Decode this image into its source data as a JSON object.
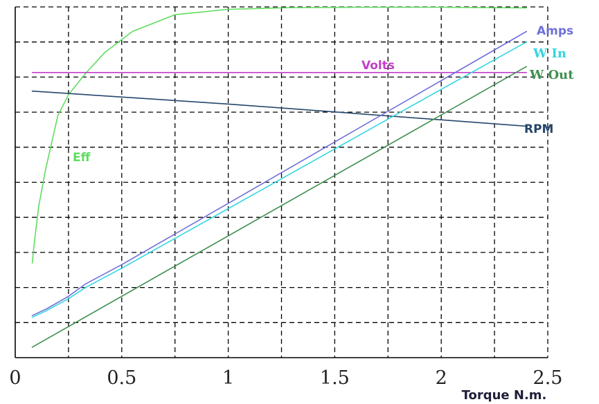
{
  "chart_data": {
    "type": "line",
    "xlabel": "Torque N.m.",
    "xlim": [
      0,
      2.5
    ],
    "x_ticks": [
      "0",
      "0.5",
      "1",
      "1.5",
      "2",
      "2.5"
    ],
    "ylim": [
      0,
      10
    ],
    "grid": true,
    "series": [
      {
        "name": "Eff",
        "color": "#5fdc5f",
        "x": [
          0.08,
          0.09,
          0.11,
          0.14,
          0.17,
          0.2,
          0.25,
          0.33,
          0.42,
          0.55,
          0.75,
          1.0,
          1.3,
          1.6,
          2.0,
          2.4
        ],
        "y": [
          2.7,
          3.3,
          4.3,
          5.3,
          6.1,
          6.9,
          7.5,
          8.1,
          8.7,
          9.3,
          9.78,
          9.93,
          9.98,
          9.99,
          9.99,
          9.97
        ]
      },
      {
        "name": "Volts",
        "color": "#c03fc9",
        "x": [
          0.08,
          2.4
        ],
        "y": [
          8.13,
          8.13
        ]
      },
      {
        "name": "RPM",
        "color": "#26466b",
        "x": [
          0.08,
          1.0,
          2.4
        ],
        "y": [
          7.6,
          7.23,
          6.6
        ]
      },
      {
        "name": "Amps",
        "color": "#6f6fd9",
        "x": [
          0.08,
          0.15,
          0.25,
          0.33,
          0.5,
          1.0,
          1.5,
          2.0,
          2.4
        ],
        "y": [
          1.2,
          1.4,
          1.75,
          2.1,
          2.65,
          4.4,
          6.15,
          7.9,
          9.3
        ]
      },
      {
        "name": "W In",
        "color": "#33d6e0",
        "x": [
          0.08,
          0.15,
          0.25,
          0.33,
          0.5,
          1.0,
          1.5,
          2.0,
          2.4
        ],
        "y": [
          1.15,
          1.35,
          1.68,
          2.0,
          2.55,
          4.25,
          5.95,
          7.65,
          9.0
        ]
      },
      {
        "name": "W Out",
        "color": "#3f8f4f",
        "x": [
          0.08,
          2.4
        ],
        "y": [
          0.3,
          8.3
        ]
      }
    ]
  }
}
